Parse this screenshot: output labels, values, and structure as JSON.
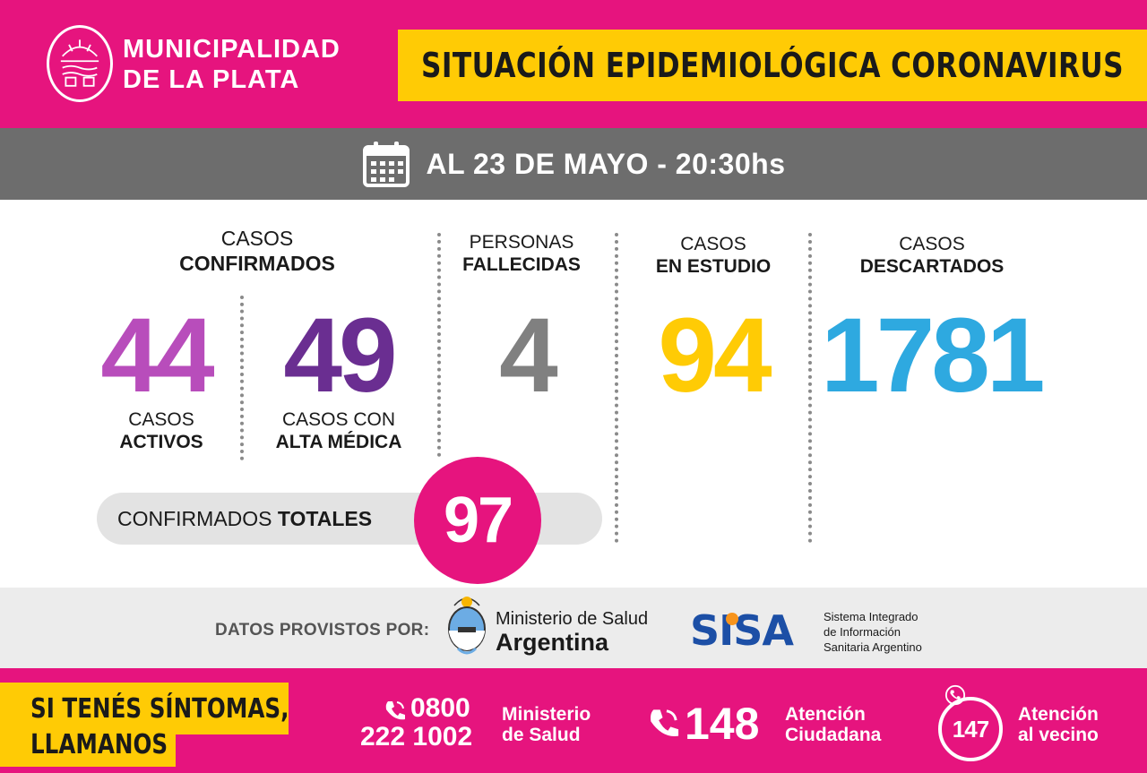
{
  "header": {
    "org_line1": "MUNICIPALIDAD",
    "org_line2_a": "DE ",
    "org_line2_b": "LA PLATA",
    "title": "SITUACIÓN EPIDEMIOLÓGICA CORONAVIRUS"
  },
  "date": {
    "icon": "calendar-icon",
    "text": "AL 23 DE MAYO - 20:30hs"
  },
  "confirmed": {
    "label_top": "CASOS",
    "label_bold": "CONFIRMADOS",
    "active": {
      "value": "44",
      "label_top": "CASOS",
      "label_bold": "ACTIVOS",
      "color": "#b84dbb"
    },
    "recovered": {
      "value": "49",
      "label_top": "CASOS CON",
      "label_bold": "ALTA MÉDICA",
      "color": "#6a2e91"
    },
    "total_label_a": "CONFIRMADOS ",
    "total_label_b": "TOTALES",
    "total_value": "97"
  },
  "deaths": {
    "label_top": "PERSONAS",
    "label_bold": "FALLECIDAS",
    "value": "4",
    "color": "#808080"
  },
  "under_study": {
    "label_top": "CASOS",
    "label_bold": "EN ESTUDIO",
    "value": "94",
    "color": "#ffcb05"
  },
  "discarded": {
    "label_top": "CASOS",
    "label_bold": "DESCARTADOS",
    "value": "1781",
    "color": "#2ea9e0"
  },
  "source": {
    "label": "DATOS PROVISTOS POR:",
    "ministry_line1": "Ministerio de Salud",
    "ministry_line2": "Argentina",
    "sisa_logo": "SISA",
    "sisa_desc_1": "Sistema Integrado",
    "sisa_desc_2": "de Información",
    "sisa_desc_3": "Sanitaria Argentino"
  },
  "footer": {
    "symptom_line1": "SI TENÉS SÍNTOMAS,",
    "symptom_line2": "LLAMANOS",
    "phone1_line1": "0800",
    "phone1_line2": "222 1002",
    "phone1_desc1": "Ministerio",
    "phone1_desc2": "de Salud",
    "phone2_number": "148",
    "phone2_desc1": "Atención",
    "phone2_desc2": "Ciudadana",
    "phone3_number": "147",
    "phone3_desc1": "Atención",
    "phone3_desc2": "al vecino"
  },
  "colors": {
    "magenta": "#e6147e",
    "yellow": "#ffcb05",
    "gray": "#6d6d6d"
  }
}
